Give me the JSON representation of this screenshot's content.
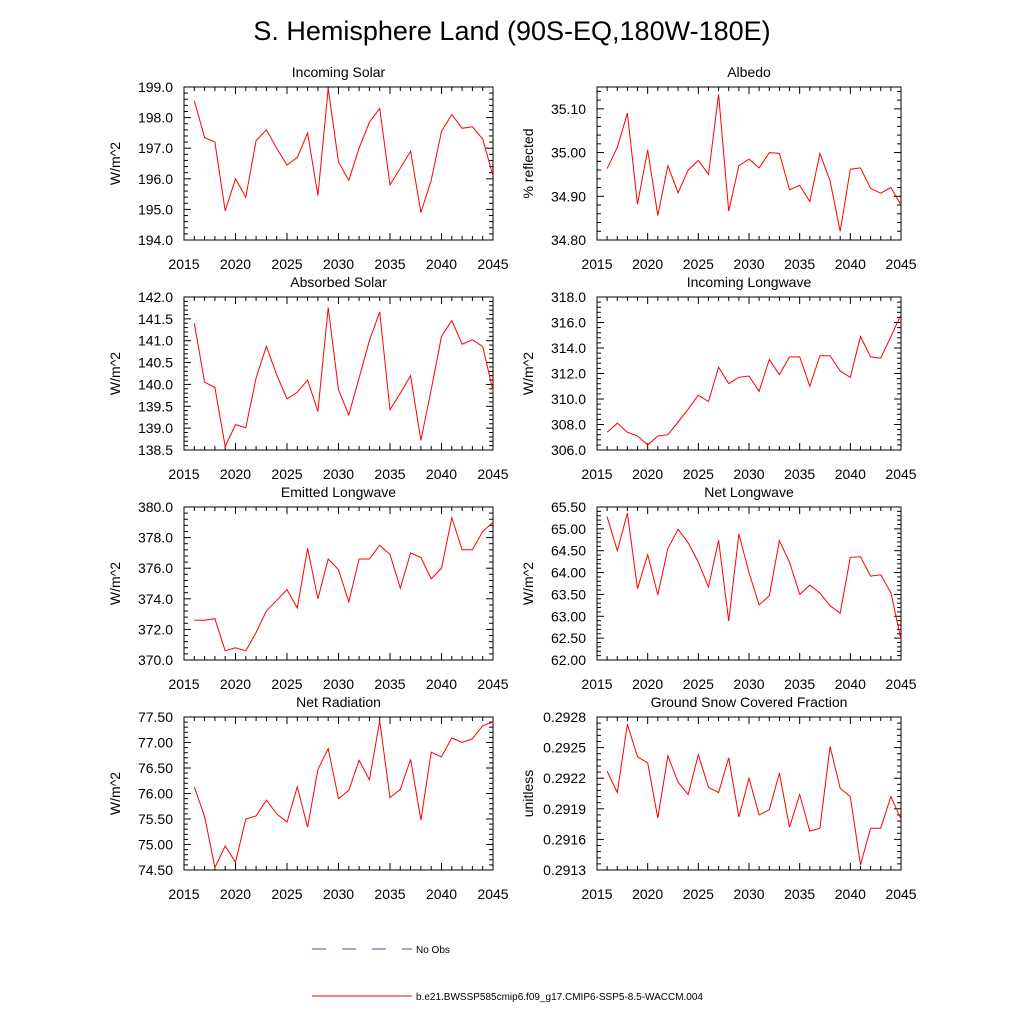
{
  "title": "S. Hemisphere Land (90S-EQ,180W-180E)",
  "colors": {
    "model_line": "#ff0000",
    "obs_line": "#3b4fb0",
    "axis": "#000000"
  },
  "legend": {
    "obs_label": "No Obs",
    "model_label": "b.e21.BWSSP585cmip6.f09_g17.CMIP6-SSP5-8.5-WACCM.004"
  },
  "chart_data": [
    {
      "type": "line",
      "title": "Incoming Solar",
      "ylabel": "W/m^2",
      "xlim": [
        2015,
        2045
      ],
      "ylim": [
        194.0,
        199.0
      ],
      "xticks": [
        2015,
        2020,
        2025,
        2030,
        2035,
        2040,
        2045
      ],
      "yticks": [
        194.0,
        195.0,
        196.0,
        197.0,
        198.0,
        199.0
      ],
      "yticklabels": [
        "194.0",
        "195.0",
        "196.0",
        "197.0",
        "198.0",
        "199.0"
      ],
      "x": [
        2016,
        2017,
        2018,
        2019,
        2020,
        2021,
        2022,
        2023,
        2024,
        2025,
        2026,
        2027,
        2028,
        2029,
        2030,
        2031,
        2032,
        2033,
        2034,
        2035,
        2036,
        2037,
        2038,
        2039,
        2040,
        2041,
        2042,
        2043,
        2044,
        2045
      ],
      "values": [
        198.55,
        197.35,
        197.2,
        194.95,
        196.0,
        195.4,
        197.25,
        197.6,
        197.0,
        196.45,
        196.7,
        197.5,
        195.45,
        198.95,
        196.55,
        195.95,
        197.0,
        197.85,
        198.3,
        195.8,
        196.35,
        196.9,
        194.9,
        195.95,
        197.55,
        198.1,
        197.65,
        197.7,
        197.3,
        196.1
      ],
      "series_name": "b.e21.BWSSP585cmip6.f09_g17.CMIP6-SSP5-8.5-WACCM.004"
    },
    {
      "type": "line",
      "title": "Albedo",
      "ylabel": "% reflected",
      "xlim": [
        2015,
        2045
      ],
      "ylim": [
        34.8,
        35.15
      ],
      "xticks": [
        2015,
        2020,
        2025,
        2030,
        2035,
        2040,
        2045
      ],
      "yticks": [
        34.8,
        34.9,
        35.0,
        35.1
      ],
      "yticklabels": [
        "34.80",
        "34.90",
        "35.00",
        "35.10"
      ],
      "x": [
        2016,
        2017,
        2018,
        2019,
        2020,
        2021,
        2022,
        2023,
        2024,
        2025,
        2026,
        2027,
        2028,
        2029,
        2030,
        2031,
        2032,
        2033,
        2034,
        2035,
        2036,
        2037,
        2038,
        2039,
        2040,
        2041,
        2042,
        2043,
        2044,
        2045
      ],
      "values": [
        34.963,
        35.012,
        35.09,
        34.882,
        35.006,
        34.856,
        34.97,
        34.908,
        34.96,
        34.982,
        34.95,
        35.133,
        34.866,
        34.97,
        34.985,
        34.965,
        35.0,
        34.998,
        34.915,
        34.925,
        34.888,
        34.998,
        34.935,
        34.82,
        34.962,
        34.965,
        34.918,
        34.907,
        34.92,
        34.88
      ],
      "series_name": "b.e21.BWSSP585cmip6.f09_g17.CMIP6-SSP5-8.5-WACCM.004"
    },
    {
      "type": "line",
      "title": "Absorbed Solar",
      "ylabel": "W/m^2",
      "xlim": [
        2015,
        2045
      ],
      "ylim": [
        138.5,
        142.0
      ],
      "xticks": [
        2015,
        2020,
        2025,
        2030,
        2035,
        2040,
        2045
      ],
      "yticks": [
        138.5,
        139.0,
        139.5,
        140.0,
        140.5,
        141.0,
        141.5,
        142.0
      ],
      "yticklabels": [
        "138.5",
        "139.0",
        "139.5",
        "140.0",
        "140.5",
        "141.0",
        "141.5",
        "142.0"
      ],
      "x": [
        2016,
        2017,
        2018,
        2019,
        2020,
        2021,
        2022,
        2023,
        2024,
        2025,
        2026,
        2027,
        2028,
        2029,
        2030,
        2031,
        2032,
        2033,
        2034,
        2035,
        2036,
        2037,
        2038,
        2039,
        2040,
        2041,
        2042,
        2043,
        2044,
        2045
      ],
      "values": [
        141.4,
        140.05,
        139.93,
        138.58,
        139.08,
        139.01,
        140.15,
        140.87,
        140.22,
        139.67,
        139.82,
        140.1,
        139.38,
        141.76,
        139.88,
        139.3,
        140.15,
        141.0,
        141.66,
        139.42,
        139.8,
        140.2,
        138.72,
        139.88,
        141.1,
        141.46,
        140.92,
        141.02,
        140.87,
        139.85
      ],
      "series_name": "b.e21.BWSSP585cmip6.f09_g17.CMIP6-SSP5-8.5-WACCM.004"
    },
    {
      "type": "line",
      "title": "Incoming Longwave",
      "ylabel": "W/m^2",
      "xlim": [
        2015,
        2045
      ],
      "ylim": [
        306.0,
        318.0
      ],
      "xticks": [
        2015,
        2020,
        2025,
        2030,
        2035,
        2040,
        2045
      ],
      "yticks": [
        306.0,
        308.0,
        310.0,
        312.0,
        314.0,
        316.0,
        318.0
      ],
      "yticklabels": [
        "306.0",
        "308.0",
        "310.0",
        "312.0",
        "314.0",
        "316.0",
        "318.0"
      ],
      "x": [
        2016,
        2017,
        2018,
        2019,
        2020,
        2021,
        2022,
        2023,
        2024,
        2025,
        2026,
        2027,
        2028,
        2029,
        2030,
        2031,
        2032,
        2033,
        2034,
        2035,
        2036,
        2037,
        2038,
        2039,
        2040,
        2041,
        2042,
        2043,
        2044,
        2045
      ],
      "values": [
        307.4,
        308.1,
        307.4,
        307.1,
        306.4,
        307.1,
        307.2,
        308.2,
        309.2,
        310.3,
        309.8,
        312.5,
        311.2,
        311.7,
        311.8,
        310.6,
        313.1,
        311.9,
        313.3,
        313.3,
        311.0,
        313.4,
        313.4,
        312.2,
        311.7,
        314.9,
        313.3,
        313.2,
        314.9,
        316.6
      ],
      "series_name": "b.e21.BWSSP585cmip6.f09_g17.CMIP6-SSP5-8.5-WACCM.004"
    },
    {
      "type": "line",
      "title": "Emitted Longwave",
      "ylabel": "W/m^2",
      "xlim": [
        2015,
        2045
      ],
      "ylim": [
        370.0,
        380.0
      ],
      "xticks": [
        2015,
        2020,
        2025,
        2030,
        2035,
        2040,
        2045
      ],
      "yticks": [
        370.0,
        372.0,
        374.0,
        376.0,
        378.0,
        380.0
      ],
      "yticklabels": [
        "370.0",
        "372.0",
        "374.0",
        "376.0",
        "378.0",
        "380.0"
      ],
      "x": [
        2016,
        2017,
        2018,
        2019,
        2020,
        2021,
        2022,
        2023,
        2024,
        2025,
        2026,
        2027,
        2028,
        2029,
        2030,
        2031,
        2032,
        2033,
        2034,
        2035,
        2036,
        2037,
        2038,
        2039,
        2040,
        2041,
        2042,
        2043,
        2044,
        2045
      ],
      "values": [
        372.6,
        372.6,
        372.7,
        370.6,
        370.8,
        370.6,
        371.8,
        373.2,
        373.9,
        374.6,
        373.4,
        377.3,
        374.0,
        376.6,
        375.9,
        373.8,
        376.6,
        376.6,
        377.5,
        376.9,
        374.7,
        377.0,
        376.7,
        375.3,
        376.0,
        379.3,
        377.2,
        377.2,
        378.4,
        379.0
      ],
      "series_name": "b.e21.BWSSP585cmip6.f09_g17.CMIP6-SSP5-8.5-WACCM.004"
    },
    {
      "type": "line",
      "title": "Net Longwave",
      "ylabel": "W/m^2",
      "xlim": [
        2015,
        2045
      ],
      "ylim": [
        62.0,
        65.5
      ],
      "xticks": [
        2015,
        2020,
        2025,
        2030,
        2035,
        2040,
        2045
      ],
      "yticks": [
        62.0,
        62.5,
        63.0,
        63.5,
        64.0,
        64.5,
        65.0,
        65.5
      ],
      "yticklabels": [
        "62.00",
        "62.50",
        "63.00",
        "63.50",
        "64.00",
        "64.50",
        "65.00",
        "65.50"
      ],
      "x": [
        2016,
        2017,
        2018,
        2019,
        2020,
        2021,
        2022,
        2023,
        2024,
        2025,
        2026,
        2027,
        2028,
        2029,
        2030,
        2031,
        2032,
        2033,
        2034,
        2035,
        2036,
        2037,
        2038,
        2039,
        2040,
        2041,
        2042,
        2043,
        2044,
        2045
      ],
      "values": [
        65.28,
        64.5,
        65.36,
        63.63,
        64.41,
        63.49,
        64.55,
        64.99,
        64.68,
        64.24,
        63.67,
        64.74,
        62.89,
        64.88,
        64.0,
        63.26,
        63.47,
        64.73,
        64.24,
        63.5,
        63.71,
        63.53,
        63.24,
        63.07,
        64.35,
        64.36,
        63.92,
        63.95,
        63.54,
        62.47
      ],
      "series_name": "b.e21.BWSSP585cmip6.f09_g17.CMIP6-SSP5-8.5-WACCM.004"
    },
    {
      "type": "line",
      "title": "Net Radiation",
      "ylabel": "W/m^2",
      "xlim": [
        2015,
        2045
      ],
      "ylim": [
        74.5,
        77.5
      ],
      "xticks": [
        2015,
        2020,
        2025,
        2030,
        2035,
        2040,
        2045
      ],
      "yticks": [
        74.5,
        75.0,
        75.5,
        76.0,
        76.5,
        77.0,
        77.5
      ],
      "yticklabels": [
        "74.50",
        "75.00",
        "75.50",
        "76.00",
        "76.50",
        "77.00",
        "77.50"
      ],
      "x": [
        2016,
        2017,
        2018,
        2019,
        2020,
        2021,
        2022,
        2023,
        2024,
        2025,
        2026,
        2027,
        2028,
        2029,
        2030,
        2031,
        2032,
        2033,
        2034,
        2035,
        2036,
        2037,
        2038,
        2039,
        2040,
        2041,
        2042,
        2043,
        2044,
        2045
      ],
      "values": [
        76.13,
        75.55,
        74.55,
        74.97,
        74.65,
        75.5,
        75.56,
        75.87,
        75.6,
        75.44,
        76.13,
        75.34,
        76.47,
        76.88,
        75.9,
        76.06,
        76.65,
        76.27,
        77.42,
        75.92,
        76.08,
        76.67,
        75.48,
        76.81,
        76.72,
        77.09,
        77.0,
        77.07,
        77.33,
        77.4
      ],
      "series_name": "b.e21.BWSSP585cmip6.f09_g17.CMIP6-SSP5-8.5-WACCM.004"
    },
    {
      "type": "line",
      "title": "Ground Snow Covered Fraction",
      "ylabel": "unitless",
      "xlim": [
        2015,
        2045
      ],
      "ylim": [
        0.2913,
        0.2928
      ],
      "xticks": [
        2015,
        2020,
        2025,
        2030,
        2035,
        2040,
        2045
      ],
      "yticks": [
        0.2913,
        0.2916,
        0.2919,
        0.2922,
        0.2925,
        0.2928
      ],
      "yticklabels": [
        "0.2913",
        "0.2916",
        "0.2919",
        "0.2922",
        "0.2925",
        "0.2928"
      ],
      "x": [
        2016,
        2017,
        2018,
        2019,
        2020,
        2021,
        2022,
        2023,
        2024,
        2025,
        2026,
        2027,
        2028,
        2029,
        2030,
        2031,
        2032,
        2033,
        2034,
        2035,
        2036,
        2037,
        2038,
        2039,
        2040,
        2041,
        2042,
        2043,
        2044,
        2045
      ],
      "values": [
        0.29227,
        0.29206,
        0.29273,
        0.29241,
        0.29235,
        0.29181,
        0.29242,
        0.29216,
        0.29204,
        0.29243,
        0.29211,
        0.29206,
        0.2924,
        0.29182,
        0.2922,
        0.29184,
        0.29189,
        0.29225,
        0.29172,
        0.29204,
        0.29168,
        0.29171,
        0.29251,
        0.2921,
        0.29202,
        0.29135,
        0.29171,
        0.29171,
        0.29202,
        0.2918
      ],
      "series_name": "b.e21.BWSSP585cmip6.f09_g17.CMIP6-SSP5-8.5-WACCM.004"
    }
  ]
}
